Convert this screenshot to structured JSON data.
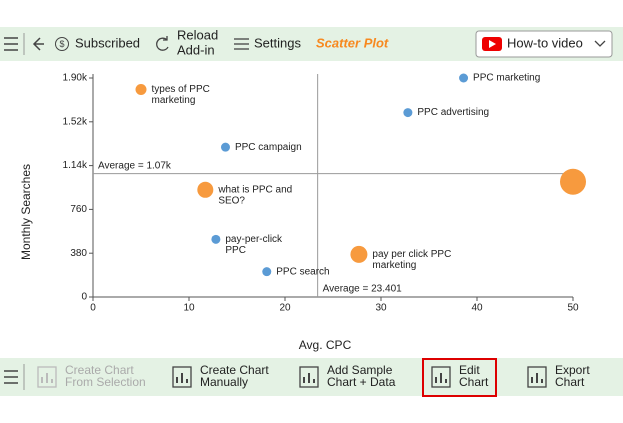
{
  "toolbar": {
    "subscribed": "Subscribed",
    "reload": [
      "Reload",
      "Add-in"
    ],
    "settings": "Settings",
    "title": "Scatter Plot",
    "video": "How-to video"
  },
  "bottom_bar": {
    "buttons": [
      {
        "lines": [
          "Create Chart",
          "From Selection"
        ],
        "disabled": true
      },
      {
        "lines": [
          "Create Chart",
          "Manually"
        ],
        "disabled": false
      },
      {
        "lines": [
          "Add Sample",
          "Chart + Data"
        ],
        "disabled": false
      },
      {
        "lines": [
          "Edit",
          "Chart"
        ],
        "disabled": false,
        "selected": true
      },
      {
        "lines": [
          "Export",
          "Chart"
        ],
        "disabled": false
      }
    ]
  },
  "chart_data": {
    "type": "scatter",
    "x_label": "Avg. CPC",
    "y_label": "Monthly Searches",
    "x": [
      5.0,
      38.6,
      32.8,
      13.8,
      11.7,
      50,
      12.8,
      18.1,
      27.7
    ],
    "y": [
      1800,
      1900,
      1600,
      1300,
      930,
      1000,
      500,
      220,
      370
    ],
    "sizes": [
      5.5,
      4.5,
      4.5,
      4.5,
      8,
      13,
      4.5,
      4.5,
      8.5
    ],
    "colors": [
      "#f79a3e",
      "#5b9bd5",
      "#5b9bd5",
      "#5b9bd5",
      "#f79a3e",
      "#f79a3e",
      "#5b9bd5",
      "#5b9bd5",
      "#f79a3e"
    ],
    "point_labels": [
      [
        "types of PPC",
        "marketing"
      ],
      [
        "PPC marketing"
      ],
      [
        "PPC advertising"
      ],
      [
        "PPC campaign"
      ],
      [
        "what is PPC and",
        "SEO?"
      ],
      null,
      [
        "pay-per-click",
        "PPC"
      ],
      [
        "PPC search"
      ],
      [
        "pay per click PPC",
        "marketing"
      ]
    ],
    "xlim": [
      0,
      50
    ],
    "xticks": [
      0,
      10,
      20,
      30,
      40,
      50
    ],
    "ylim": [
      0,
      1900
    ],
    "yticks": [
      0,
      380,
      760,
      {
        "value": 1140,
        "label": "1.14k"
      },
      {
        "value": 1520,
        "label": "1.52k"
      },
      {
        "value": 1900,
        "label": "1.90k"
      }
    ],
    "average_y": {
      "value": 1070,
      "label": "Average = 1.07k"
    },
    "average_x": {
      "value": 23.401,
      "label": "Average = 23.401"
    }
  }
}
